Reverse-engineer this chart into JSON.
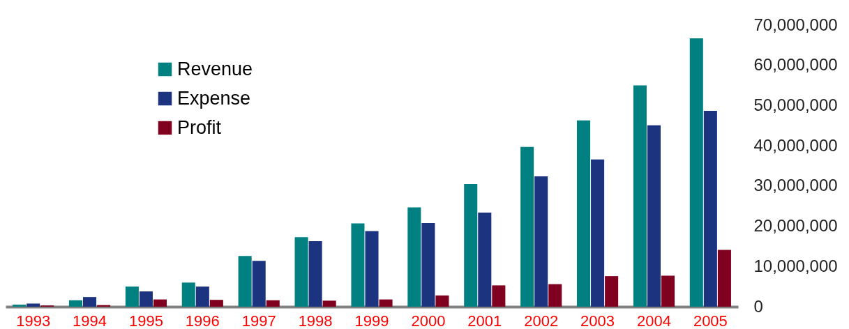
{
  "chart_data": {
    "type": "bar",
    "categories": [
      "1993",
      "1994",
      "1995",
      "1996",
      "1997",
      "1998",
      "1999",
      "2000",
      "2001",
      "2002",
      "2003",
      "2004",
      "2005"
    ],
    "series": [
      {
        "name": "Revenue",
        "color": "#008080",
        "values": [
          500000,
          1600000,
          5000000,
          6000000,
          12600000,
          17300000,
          20700000,
          24700000,
          30500000,
          39700000,
          46300000,
          55000000,
          66700000
        ]
      },
      {
        "name": "Expense",
        "color": "#1c3380",
        "values": [
          800000,
          2400000,
          3800000,
          5000000,
          11400000,
          16300000,
          18800000,
          20800000,
          23400000,
          32400000,
          36600000,
          45100000,
          48700000
        ]
      },
      {
        "name": "Profit",
        "color": "#800020",
        "values": [
          300000,
          400000,
          1800000,
          1700000,
          1600000,
          1500000,
          1800000,
          2800000,
          5300000,
          5600000,
          7600000,
          7700000,
          14100000
        ]
      }
    ],
    "ylim": [
      0,
      70000000
    ],
    "yticks": [
      0,
      {
        "value": 10000000,
        "label": "10,000,000"
      },
      {
        "value": 20000000,
        "label": "20,000,000"
      },
      {
        "value": 30000000,
        "label": "30,000,000"
      },
      {
        "value": 40000000,
        "label": "40,000,000"
      },
      {
        "value": 50000000,
        "label": "50,000,000"
      },
      {
        "value": 60000000,
        "label": "60,000,000"
      },
      {
        "value": 70000000,
        "label": "70,000,000"
      }
    ],
    "grid": false,
    "legend": "top left"
  }
}
